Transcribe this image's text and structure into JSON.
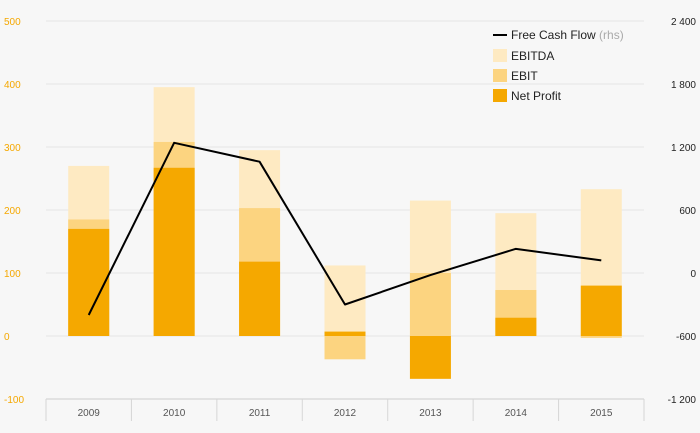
{
  "chart_data": {
    "type": "bar",
    "categories": [
      "2009",
      "2010",
      "2011",
      "2012",
      "2013",
      "2014",
      "2015"
    ],
    "ylim": [
      -100,
      500
    ],
    "y2lim": [
      -1200,
      2400
    ],
    "yticks": [
      -100,
      0,
      100,
      200,
      300,
      400,
      500
    ],
    "y2ticks": [
      -1200,
      -600,
      0,
      600,
      1200,
      1800,
      2400
    ],
    "y2tick_labels": [
      "-1 200",
      "-600",
      "0",
      "600",
      "1 200",
      "1 800",
      "2 400"
    ],
    "series": [
      {
        "name": "EBITDA",
        "color": "#feeac2",
        "values": [
          270,
          395,
          295,
          112,
          215,
          195,
          233
        ]
      },
      {
        "name": "EBIT",
        "color": "#fcd480",
        "values": [
          185,
          308,
          203,
          -37,
          100,
          73,
          -3
        ]
      },
      {
        "name": "Net Profit",
        "color": "#f5a800",
        "values": [
          170,
          267,
          118,
          7,
          -68,
          29,
          80
        ]
      }
    ],
    "line": {
      "name": "Free Cash Flow",
      "suffix": "(rhs)",
      "color": "#000000",
      "axis": "right",
      "values": [
        -400,
        1240,
        1060,
        -300,
        -20,
        230,
        120
      ]
    }
  }
}
